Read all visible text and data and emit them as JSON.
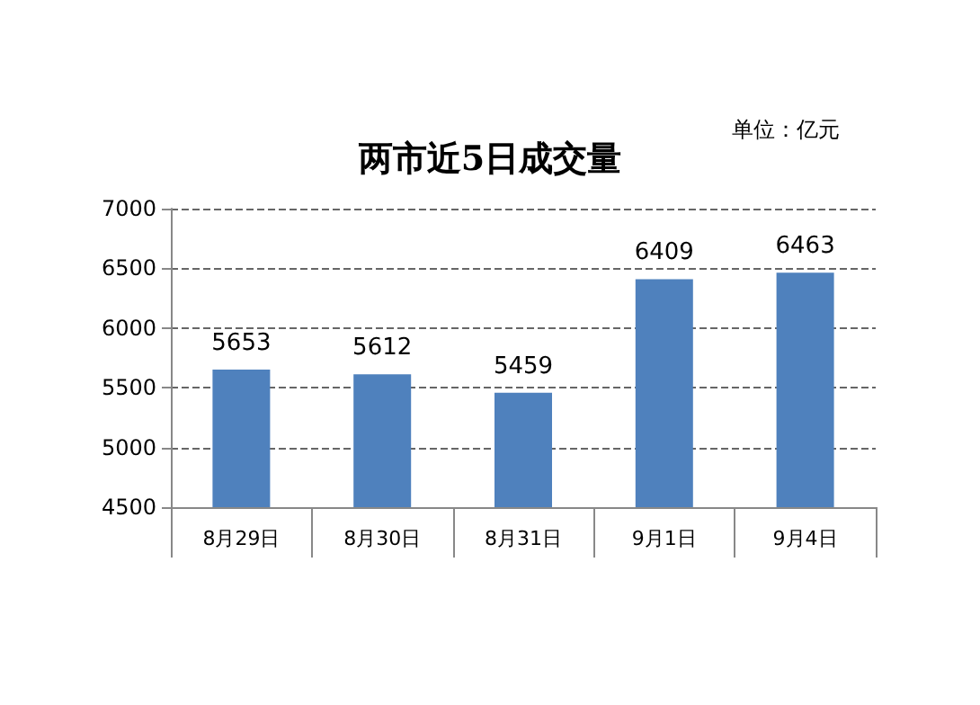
{
  "chart_data": {
    "type": "bar",
    "title": "两市近5日成交量",
    "annotations": [
      "单位：亿元"
    ],
    "categories": [
      "8月29日",
      "8月30日",
      "8月31日",
      "9月1日",
      "9月4日"
    ],
    "values": [
      5653,
      5612,
      5459,
      6409,
      6463
    ],
    "color": "#4f81bd",
    "ylim": [
      4500,
      7000
    ],
    "yticks": [
      4500,
      5000,
      5500,
      6000,
      6500,
      7000
    ],
    "grid": "y",
    "data_labels": true
  }
}
